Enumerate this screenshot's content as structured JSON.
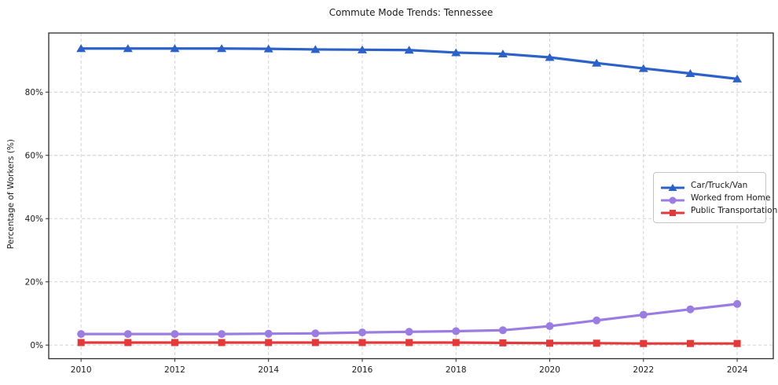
{
  "title": "Commute Mode Trends: Tennessee",
  "axes": {
    "ylabel": "Percentage of Workers (%)",
    "xlabel": ""
  },
  "chart_data": {
    "type": "line",
    "title": "Commute Mode Trends: Tennessee",
    "xlabel": "",
    "ylabel": "Percentage of Workers (%)",
    "x": [
      2010,
      2011,
      2012,
      2013,
      2014,
      2015,
      2016,
      2017,
      2018,
      2019,
      2020,
      2021,
      2022,
      2023,
      2024
    ],
    "series": [
      {
        "name": "Car/Truck/Van",
        "color": "#2c62c8",
        "marker": "triangle",
        "values": [
          93.8,
          93.8,
          93.8,
          93.8,
          93.7,
          93.5,
          93.4,
          93.3,
          92.5,
          92.1,
          91.0,
          89.2,
          87.5,
          85.9,
          84.2
        ]
      },
      {
        "name": "Worked from Home",
        "color": "#9b7ce0",
        "marker": "circle",
        "values": [
          3.5,
          3.5,
          3.5,
          3.5,
          3.6,
          3.7,
          4.0,
          4.2,
          4.4,
          4.7,
          6.0,
          7.8,
          9.6,
          11.3,
          13.0
        ]
      },
      {
        "name": "Public Transportation",
        "color": "#e23a3a",
        "marker": "square",
        "values": [
          0.8,
          0.8,
          0.8,
          0.8,
          0.8,
          0.8,
          0.8,
          0.8,
          0.8,
          0.7,
          0.6,
          0.6,
          0.5,
          0.5,
          0.5
        ]
      }
    ],
    "xlim": [
      2009.31,
      2024.77
    ],
    "ylim": [
      -4.3,
      98.7
    ],
    "ytick_values": [
      0,
      20,
      40,
      60,
      80
    ],
    "ytick_labels": [
      "0%",
      "20%",
      "40%",
      "60%",
      "80%"
    ],
    "xtick_values": [
      2010,
      2012,
      2014,
      2016,
      2018,
      2020,
      2022,
      2024
    ],
    "xtick_labels": [
      "2010",
      "2012",
      "2014",
      "2016",
      "2018",
      "2020",
      "2022",
      "2024"
    ],
    "grid": true,
    "grid_style": "dashed",
    "legend_position": "center-right",
    "colors": {
      "grid": "#cccccc",
      "axis": "#2b2b2b",
      "text": "#1a1a1a",
      "background": "#ffffff"
    }
  }
}
